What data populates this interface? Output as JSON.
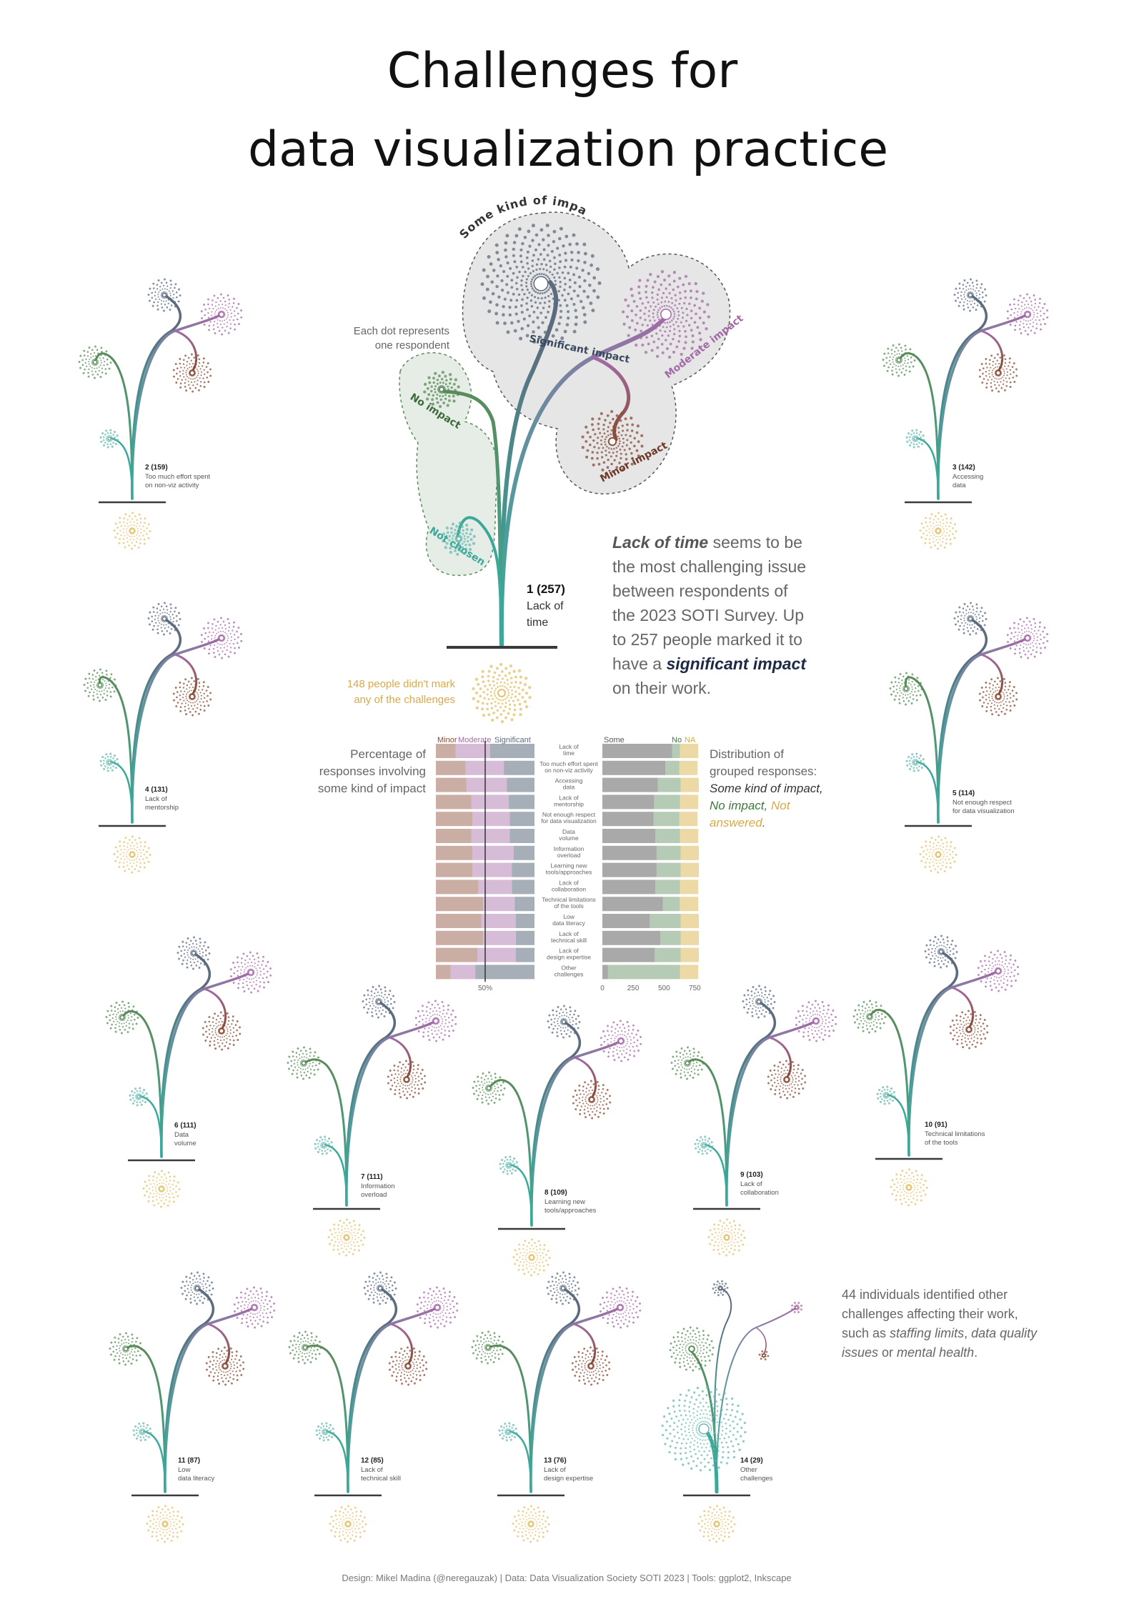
{
  "title_line1": "Challenges for",
  "title_line2": "data visualization practice",
  "colors": {
    "stem": "#3aa99a",
    "significant": "#5c6b7e",
    "moderate": "#a36aa6",
    "minor": "#8a4b36",
    "no_impact": "#5a8b5a",
    "not_chosen": "#6bbab3",
    "not_answered": "#e1c06a",
    "ground": "#3a3a3a",
    "hull_some": "#e6e6e6",
    "hull_none": "#e6ede7"
  },
  "legend": {
    "dot_note_1": "Each dot represents",
    "dot_note_2": "one respondent",
    "some_kind": "Some kind of impact",
    "significant": "Significant impact",
    "moderate": "Moderate impact",
    "minor": "Minor impact",
    "no_impact": "No impact",
    "not_chosen": "Not chosen",
    "main_rank": "1 (257)",
    "main_name_1": "Lack of",
    "main_name_2": "time",
    "na_note_1": "148 people didn't mark",
    "na_note_2": "any of the challenges"
  },
  "intro": {
    "l1_b": "Lack of time",
    "l1_r": " seems to be",
    "l2": "the most challenging issue",
    "l3": "between respondents of",
    "l4": "the 2023 SOTI Survey. Up",
    "l5": "to 257 people marked it to",
    "l6_r": "have a ",
    "l6_b": "significant impact",
    "l7": "on their work."
  },
  "pct_note": [
    "Percentage of",
    "responses involving",
    "some kind of impact"
  ],
  "dist_note": {
    "l1": "Distribution of",
    "l2": "grouped responses:",
    "l3": "Some kind of impact,",
    "l4a": "No impact",
    "l4b": ",",
    "l4c": " Not",
    "l5": "answered",
    "l5b": "."
  },
  "other_note": {
    "l1": "44 individuals identified other",
    "l2": "challenges affecting their work,",
    "l3a": "such as ",
    "l3b": "staffing limits",
    "l3c": ", ",
    "l3d": "data quality",
    "l4a": "issues",
    "l4b": " or ",
    "l4c": "mental health",
    "l4d": "."
  },
  "footer": "Design: Mikel Madina (@neregauzak) | Data: Data Visualization Society SOTI 2023 | Tools: ggplot2, Inkscape",
  "chart_data": [
    {
      "type": "bar",
      "orientation": "horizontal",
      "stacked": true,
      "title": "Percentage of responses involving some kind of impact",
      "legend": [
        "Minor",
        "Moderate",
        "Significant"
      ],
      "x_tick_labels": [
        "50%"
      ],
      "categories": [
        "Lack of time",
        "Too much effort spent on non-viz activity",
        "Accessing data",
        "Lack of mentorship",
        "Not enough respect for data visualization",
        "Data volume",
        "Information overload",
        "Learning new tools/approaches",
        "Lack of collaboration",
        "Technical limitations of the tools",
        "Low data literacy",
        "Lack of technical skill",
        "Lack of design expertise",
        "Other challenges"
      ],
      "series": [
        {
          "name": "Minor",
          "values": [
            20,
            30,
            31,
            36,
            37,
            36,
            37,
            37,
            43,
            48,
            46,
            48,
            42,
            15
          ]
        },
        {
          "name": "Moderate",
          "values": [
            35,
            39,
            41,
            38,
            38,
            39,
            42,
            40,
            34,
            32,
            35,
            33,
            39,
            25
          ]
        },
        {
          "name": "Significant",
          "values": [
            45,
            31,
            28,
            26,
            25,
            25,
            21,
            23,
            23,
            20,
            19,
            19,
            19,
            60
          ]
        }
      ],
      "xlim": [
        0,
        100
      ]
    },
    {
      "type": "bar",
      "orientation": "horizontal",
      "stacked": true,
      "title": "Distribution of grouped responses",
      "legend": [
        "Some",
        "No",
        "NA"
      ],
      "x_tick_labels": [
        "0",
        "250",
        "500",
        "750"
      ],
      "categories": [
        "Lack of time",
        "Too much effort spent on non-viz activity",
        "Accessing data",
        "Lack of mentorship",
        "Not enough respect for data visualization",
        "Data volume",
        "Information overload",
        "Learning new tools/approaches",
        "Lack of collaboration",
        "Technical limitations of the tools",
        "Low data literacy",
        "Lack of technical skill",
        "Lack of design expertise",
        "Other challenges"
      ],
      "series": [
        {
          "name": "Some",
          "values": [
            565,
            510,
            450,
            420,
            415,
            430,
            440,
            440,
            430,
            490,
            385,
            470,
            425,
            45
          ]
        },
        {
          "name": "No",
          "values": [
            65,
            115,
            185,
            210,
            210,
            200,
            195,
            195,
            200,
            140,
            250,
            165,
            210,
            585
          ]
        },
        {
          "name": "NA",
          "values": [
            148,
            148,
            148,
            148,
            148,
            148,
            148,
            148,
            148,
            148,
            148,
            148,
            148,
            148
          ]
        }
      ],
      "xlim": [
        0,
        800
      ]
    },
    {
      "type": "scatter",
      "title": "Challenges for data visualization practice",
      "plants": [
        {
          "rank": 1,
          "count": 257,
          "name": "Lack of time"
        },
        {
          "rank": 2,
          "count": 159,
          "name": "Too much effort spent on non-viz activity"
        },
        {
          "rank": 3,
          "count": 142,
          "name": "Accessing data"
        },
        {
          "rank": 4,
          "count": 131,
          "name": "Lack of mentorship"
        },
        {
          "rank": 5,
          "count": 114,
          "name": "Not enough respect for data visualization"
        },
        {
          "rank": 6,
          "count": 111,
          "name": "Data volume"
        },
        {
          "rank": 7,
          "count": 111,
          "name": "Information overload"
        },
        {
          "rank": 8,
          "count": 109,
          "name": "Learning new tools/approaches"
        },
        {
          "rank": 9,
          "count": 103,
          "name": "Lack of collaboration"
        },
        {
          "rank": 10,
          "count": 91,
          "name": "Technical limitations of the tools"
        },
        {
          "rank": 11,
          "count": 87,
          "name": "Low data literacy"
        },
        {
          "rank": 12,
          "count": 85,
          "name": "Lack of technical skill"
        },
        {
          "rank": 13,
          "count": 76,
          "name": "Lack of design expertise"
        },
        {
          "rank": 14,
          "count": 29,
          "name": "Other challenges"
        }
      ]
    }
  ],
  "bar_labels": [
    [
      "Lack of",
      "time"
    ],
    [
      "Too much effort spent",
      "on non-viz activity"
    ],
    [
      "Accessing",
      "data"
    ],
    [
      "Lack of",
      "mentorship"
    ],
    [
      "Not enough respect",
      "for data visualization"
    ],
    [
      "Data",
      "volume"
    ],
    [
      "Information",
      "overload"
    ],
    [
      "Learning new",
      "tools/approaches"
    ],
    [
      "Lack of",
      "collaboration"
    ],
    [
      "Technical limitations",
      "of the tools"
    ],
    [
      "Low",
      "data literacy"
    ],
    [
      "Lack of",
      "technical skill"
    ],
    [
      "Lack of",
      "design expertise"
    ],
    [
      "Other",
      "challenges"
    ]
  ],
  "small_plants": [
    {
      "label": "2 (159)",
      "name": [
        "Too much effort spent",
        "on non-viz activity"
      ]
    },
    {
      "label": "3 (142)",
      "name": [
        "Accessing",
        "data"
      ]
    },
    {
      "label": "4 (131)",
      "name": [
        "Lack of",
        "mentorship"
      ]
    },
    {
      "label": "5 (114)",
      "name": [
        "Not enough respect",
        "for data visualization"
      ]
    },
    {
      "label": "6 (111)",
      "name": [
        "Data",
        "volume"
      ]
    },
    {
      "label": "7 (111)",
      "name": [
        "Information",
        "overload"
      ]
    },
    {
      "label": "8 (109)",
      "name": [
        "Learning new",
        "tools/approaches"
      ]
    },
    {
      "label": "9 (103)",
      "name": [
        "Lack of",
        "collaboration"
      ]
    },
    {
      "label": "10 (91)",
      "name": [
        "Technical limitations",
        "of the tools"
      ]
    },
    {
      "label": "11 (87)",
      "name": [
        "Low",
        "data literacy"
      ]
    },
    {
      "label": "12 (85)",
      "name": [
        "Lack of",
        "technical skill"
      ]
    },
    {
      "label": "13 (76)",
      "name": [
        "Lack of",
        "design expertise"
      ]
    },
    {
      "label": "14 (29)",
      "name": [
        "Other",
        "challenges"
      ]
    }
  ]
}
